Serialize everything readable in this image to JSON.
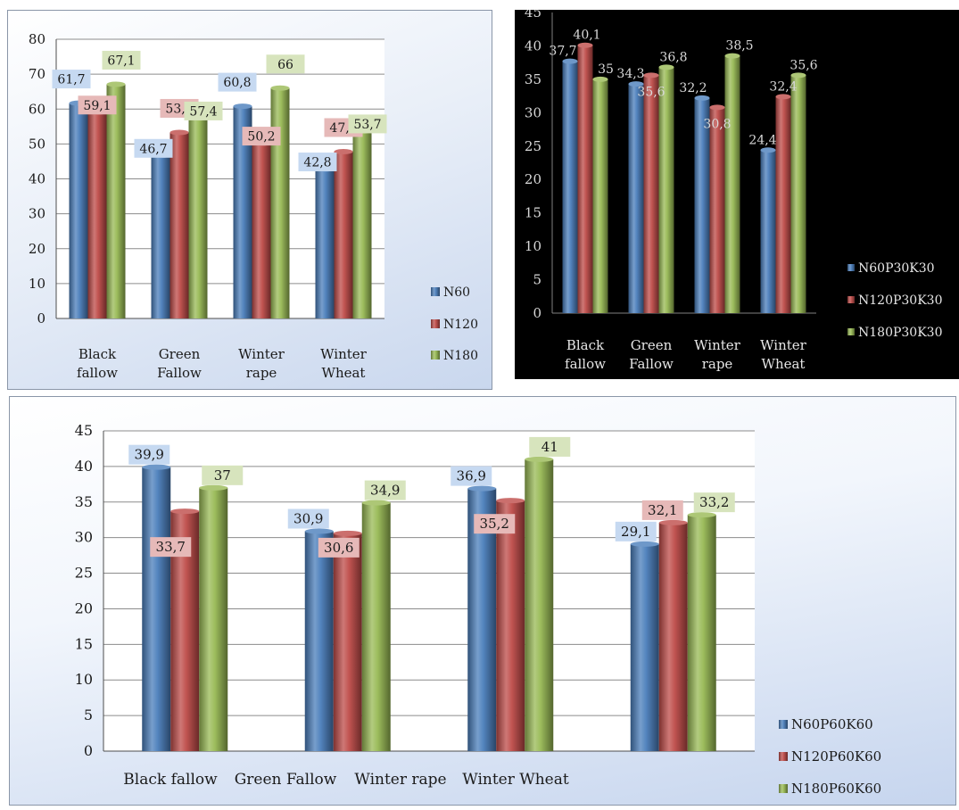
{
  "colors": {
    "N60": "#4a7ebb",
    "N120": "#be4b48",
    "N180": "#98b954",
    "box_N60": "#c6d9f1",
    "box_N120": "#e6b9b8",
    "box_N180": "#d7e4bd"
  },
  "chart_data": [
    {
      "type": "bar",
      "categories": [
        [
          "Black",
          "fallow"
        ],
        [
          "Green",
          "Fallow"
        ],
        [
          "Winter",
          "rape"
        ],
        [
          "Winter",
          "Wheat"
        ]
      ],
      "series": [
        {
          "name": "N60",
          "values": [
            61.7,
            46.7,
            60.8,
            42.8
          ],
          "labels": [
            "61,7",
            "46,7",
            "60,8",
            "42,8"
          ]
        },
        {
          "name": "N120",
          "values": [
            59.1,
            53.3,
            50.2,
            47.8
          ],
          "labels": [
            "59,1",
            "53,3",
            "50,2",
            "47,8"
          ]
        },
        {
          "name": "N180",
          "values": [
            67.1,
            57.4,
            66,
            53.7
          ],
          "labels": [
            "67,1",
            "57,4",
            "66",
            "53,7"
          ]
        }
      ],
      "ylim": [
        0,
        80
      ],
      "yticks": [
        "0",
        "10",
        "20",
        "30",
        "40",
        "50",
        "60",
        "70",
        "80"
      ],
      "grid": true,
      "legend": "right"
    },
    {
      "type": "bar",
      "categories": [
        [
          "Black",
          "fallow"
        ],
        [
          "Green",
          "Fallow"
        ],
        [
          "Winter",
          "rape"
        ],
        [
          "Winter",
          "Wheat"
        ]
      ],
      "series": [
        {
          "name": "N60P30K30",
          "values": [
            37.7,
            34.3,
            32.2,
            24.4
          ],
          "labels": [
            "37,7",
            "34,3",
            "32,2",
            "24,4"
          ]
        },
        {
          "name": "N120P30K30",
          "values": [
            40.1,
            35.6,
            30.8,
            32.4
          ],
          "labels": [
            "40,1",
            "35,6",
            "30,8",
            "32,4"
          ]
        },
        {
          "name": "N180P30K30",
          "values": [
            35,
            36.8,
            38.5,
            35.6
          ],
          "labels": [
            "35",
            "36,8",
            "38,5",
            "35,6"
          ]
        }
      ],
      "ylim": [
        0,
        45
      ],
      "yticks": [
        "0",
        "5",
        "10",
        "15",
        "20",
        "25",
        "30",
        "35",
        "40",
        "45"
      ],
      "grid": false,
      "legend": "right"
    },
    {
      "type": "bar",
      "categories": [
        [
          "Black fallow"
        ],
        [
          "Green Fallow"
        ],
        [
          "Winter rape"
        ],
        [
          "Winter Wheat"
        ]
      ],
      "series": [
        {
          "name": "N60P60K60",
          "values": [
            39.9,
            30.9,
            36.9,
            29.1
          ],
          "labels": [
            "39,9",
            "30,9",
            "36,9",
            "29,1"
          ]
        },
        {
          "name": "N120P60K60",
          "values": [
            33.7,
            30.6,
            35.2,
            32.1
          ],
          "labels": [
            "33,7",
            "30,6",
            "35,2",
            "32,1"
          ]
        },
        {
          "name": "N180P60K60",
          "values": [
            37,
            34.9,
            41,
            33.2
          ],
          "labels": [
            "37",
            "34,9",
            "41",
            "33,2"
          ]
        }
      ],
      "ylim": [
        0,
        45
      ],
      "yticks": [
        "0",
        "5",
        "10",
        "15",
        "20",
        "25",
        "30",
        "35",
        "40",
        "45"
      ],
      "grid": true,
      "legend": "right"
    }
  ]
}
